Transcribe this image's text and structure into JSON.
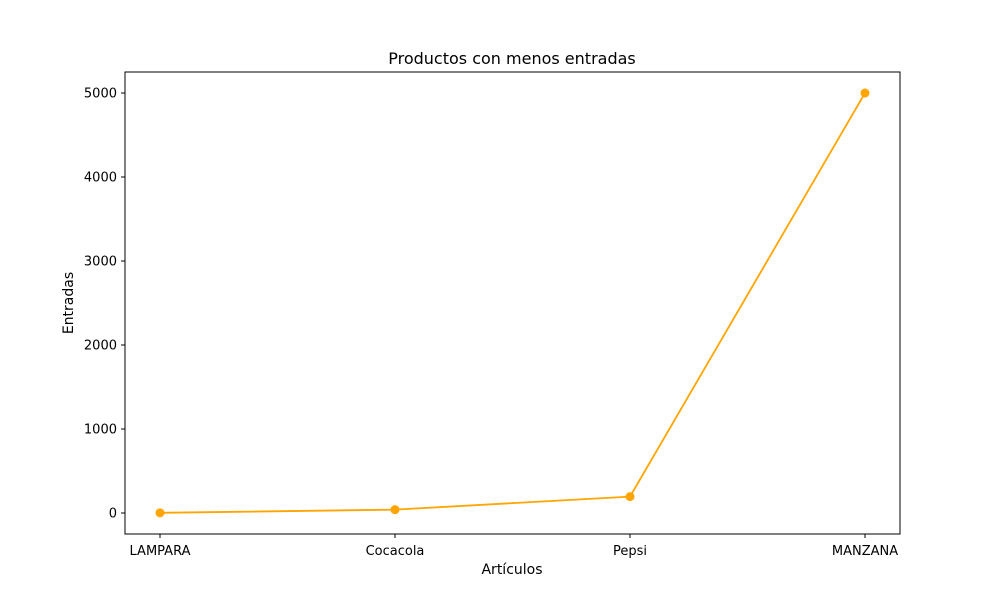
{
  "chart_data": {
    "type": "line",
    "title": "Productos con menos entradas",
    "xlabel": "Artículos",
    "ylabel": "Entradas",
    "categories": [
      "LAMPARA",
      "Cocacola",
      "Pepsi",
      "MANZANA"
    ],
    "series": [
      {
        "name": "Entradas",
        "values": [
          2,
          40,
          195,
          5000
        ],
        "color": "#ffa500"
      }
    ],
    "ylim": [
      -250,
      5250
    ],
    "yticks": [
      0,
      1000,
      2000,
      3000,
      4000,
      5000
    ],
    "ytick_labels": [
      "0",
      "1000",
      "2000",
      "3000",
      "4000",
      "5000"
    ],
    "grid": false,
    "legend": "none"
  }
}
